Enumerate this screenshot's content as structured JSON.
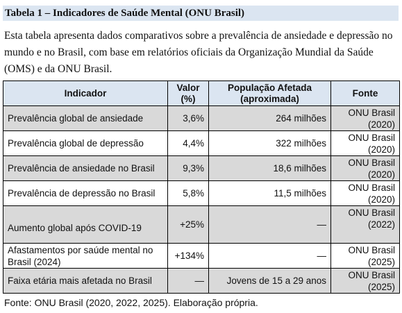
{
  "title": "Tabela 1 – Indicadores de Saúde Mental (ONU Brasil)",
  "intro": "Esta tabela apresenta dados comparativos sobre a prevalência de ansiedade e depressão no mundo e no Brasil, com base em relatórios oficiais da Organização Mundial da Saúde (OMS) e da ONU Brasil.",
  "table": {
    "headers": {
      "indicador": "Indicador",
      "valor_line1": "Valor",
      "valor_line2": "(%)",
      "pop_line1": "População Afetada",
      "pop_line2": "(aproximada)",
      "fonte": "Fonte"
    },
    "rows": [
      {
        "indicador": "Prevalência global de ansiedade",
        "valor": "3,6%",
        "populacao": "264 milhões",
        "fonte_l1": "ONU Brasil",
        "fonte_l2": "(2020)"
      },
      {
        "indicador": "Prevalência global de depressão",
        "valor": "4,4%",
        "populacao": "322 milhões",
        "fonte_l1": "ONU Brasil",
        "fonte_l2": "(2020)"
      },
      {
        "indicador": "Prevalência de ansiedade no Brasil",
        "valor": "9,3%",
        "populacao": "18,6 milhões",
        "fonte_l1": "ONU Brasil",
        "fonte_l2": "(2020)"
      },
      {
        "indicador": "Prevalência de depressão no Brasil",
        "valor": "5,8%",
        "populacao": "11,5 milhões",
        "fonte_l1": "ONU Brasil",
        "fonte_l2": "(2020)"
      },
      {
        "indicador": "Aumento global após COVID-19",
        "valor": "+25%",
        "populacao": "—",
        "fonte_l1": "ONU Brasil",
        "fonte_l2": "(2022)"
      },
      {
        "indicador": "Afastamentos por saúde mental no Brasil (2024)",
        "valor": "+134%",
        "populacao": "—",
        "fonte_l1": "ONU Brasil",
        "fonte_l2": "(2025)"
      },
      {
        "indicador": "Faixa etária mais afetada no Brasil",
        "valor": "—",
        "populacao": "Jovens de 15 a 29 anos",
        "fonte_l1": "ONU Brasil",
        "fonte_l2": "(2025)"
      }
    ]
  },
  "caption": "Fonte: ONU Brasil (2020, 2022, 2025). Elaboração própria.",
  "colors": {
    "header_bg": "#dbe5f1",
    "shaded_row": "#d9d9d9"
  }
}
